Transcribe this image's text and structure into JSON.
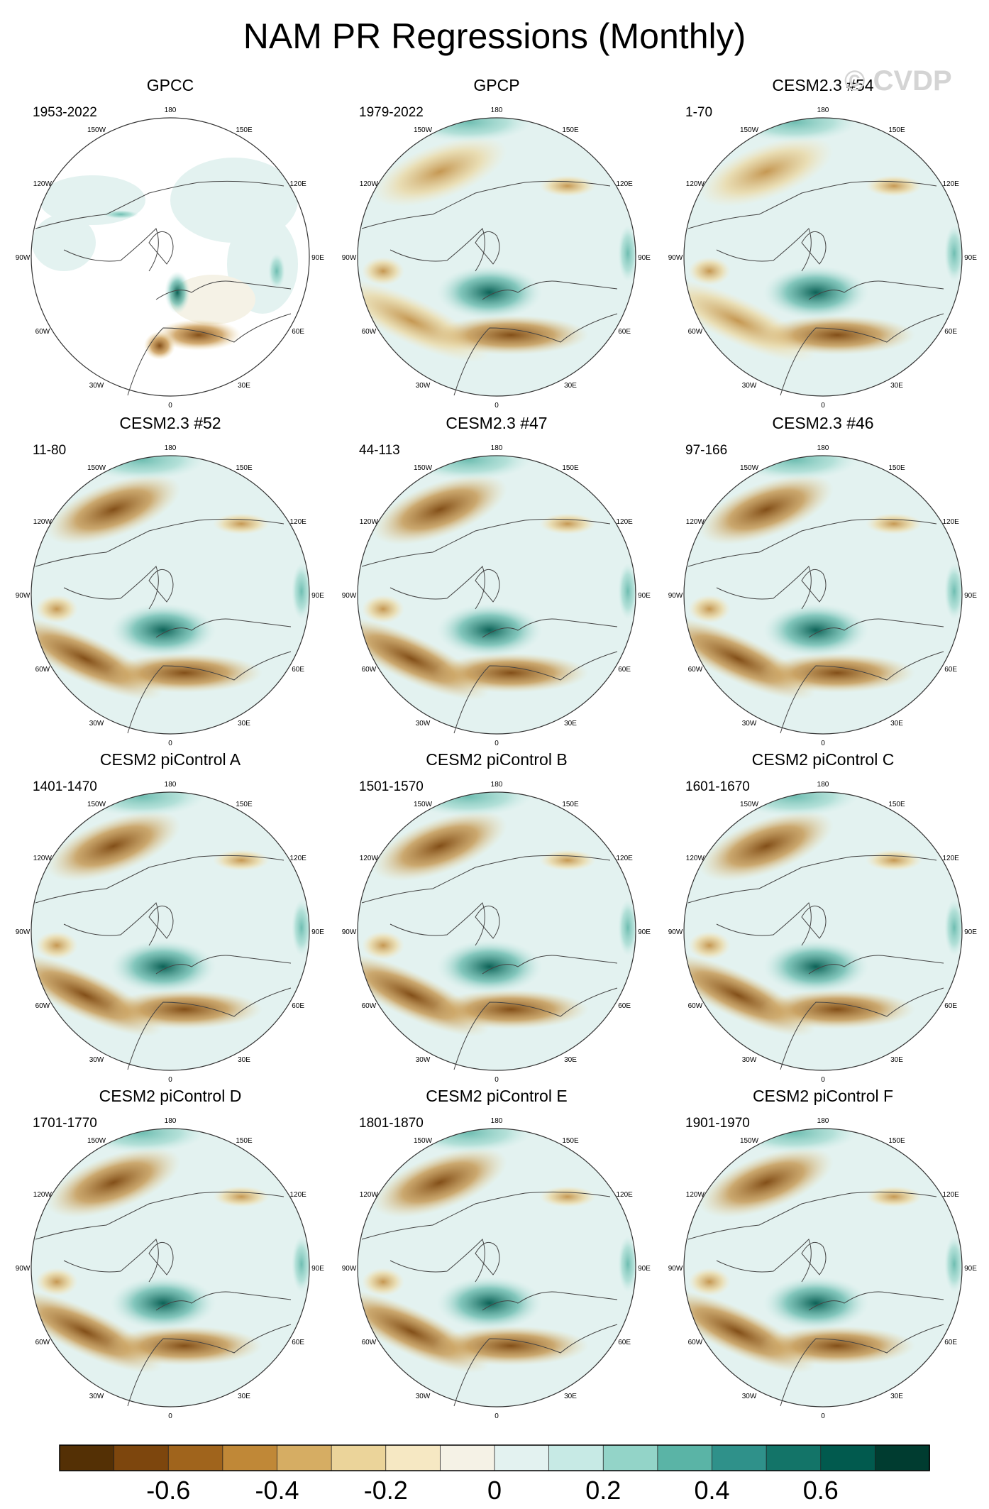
{
  "title": "NAM PR Regressions (Monthly)",
  "watermark": "© CVDP",
  "longitude_labels": [
    "180",
    "150E",
    "120E",
    "90E",
    "60E",
    "30E",
    "0",
    "30W",
    "60W",
    "90W",
    "120W",
    "150W"
  ],
  "panels": [
    {
      "name": "GPCC",
      "period": "1953-2022"
    },
    {
      "name": "GPCP",
      "period": "1979-2022"
    },
    {
      "name": "CESM2.3 #54",
      "period": "1-70"
    },
    {
      "name": "CESM2.3 #52",
      "period": "11-80"
    },
    {
      "name": "CESM2.3 #47",
      "period": "44-113"
    },
    {
      "name": "CESM2.3 #46",
      "period": "97-166"
    },
    {
      "name": "CESM2 piControl A",
      "period": "1401-1470"
    },
    {
      "name": "CESM2 piControl B",
      "period": "1501-1570"
    },
    {
      "name": "CESM2 piControl C",
      "period": "1601-1670"
    },
    {
      "name": "CESM2 piControl D",
      "period": "1701-1770"
    },
    {
      "name": "CESM2 piControl E",
      "period": "1801-1870"
    },
    {
      "name": "CESM2 piControl F",
      "period": "1901-1970"
    }
  ],
  "colorbar": {
    "colors": [
      "#543005",
      "#7d460d",
      "#a0641c",
      "#c08837",
      "#d6ad63",
      "#ebd49a",
      "#f6e8c3",
      "#f5f2e6",
      "#e3f2f0",
      "#c7eae5",
      "#93d4c8",
      "#5ab4a6",
      "#2f918a",
      "#137468",
      "#015a4e",
      "#003c30"
    ],
    "tick_labels": [
      "-0.6",
      "-0.4",
      "-0.2",
      "0",
      "0.2",
      "0.4",
      "0.6"
    ]
  }
}
